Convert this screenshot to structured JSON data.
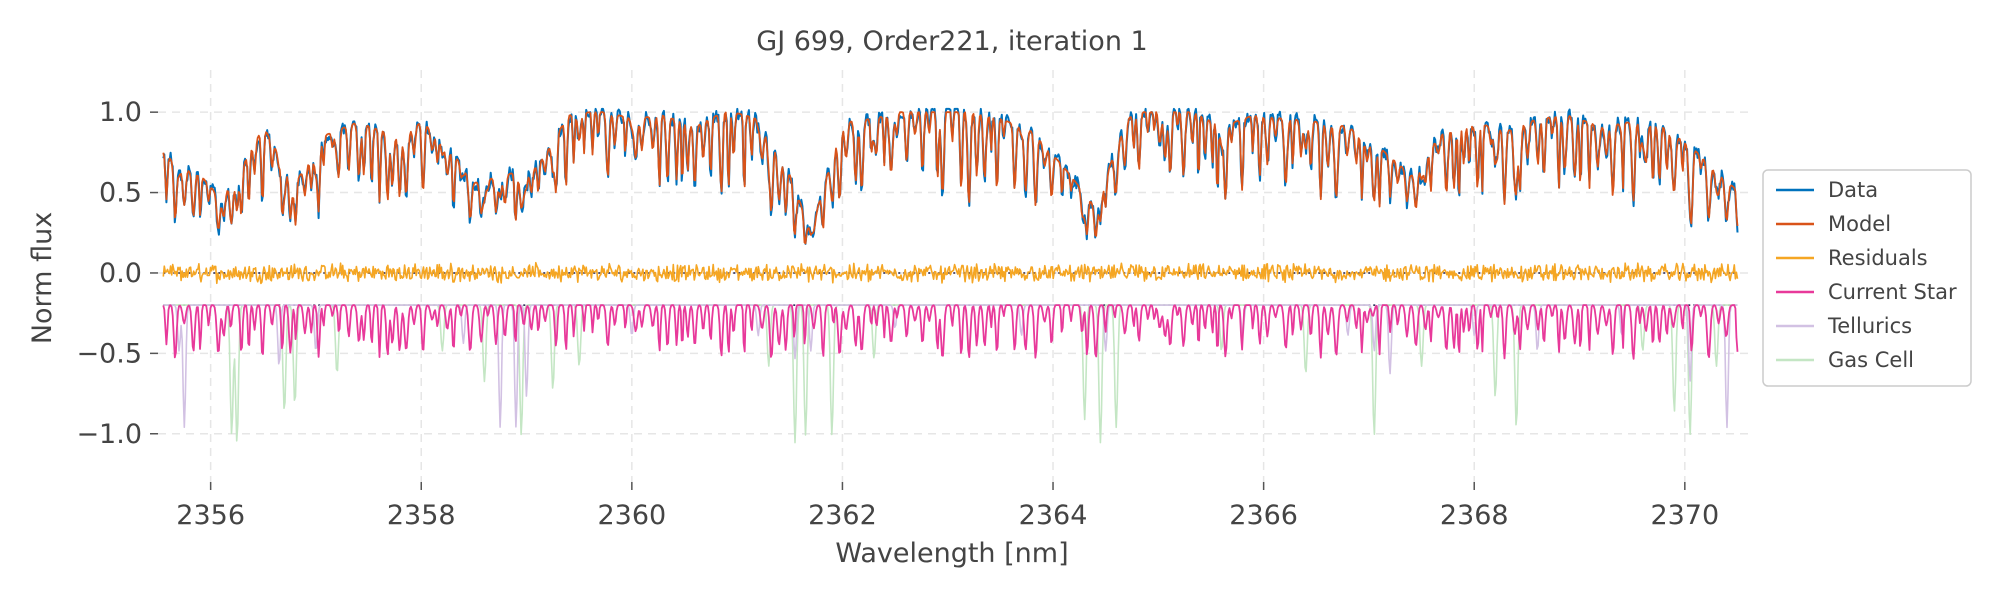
{
  "chart_data": {
    "type": "line",
    "title": "GJ 699, Order221, iteration 1",
    "xlabel": "Wavelength [nm]",
    "ylabel": "Norm flux",
    "xlim": [
      2355.5,
      2370.6
    ],
    "ylim": [
      -1.3,
      1.2
    ],
    "xticks": [
      2356,
      2358,
      2360,
      2362,
      2364,
      2366,
      2368,
      2370
    ],
    "yticks": [
      1.0,
      0.5,
      0.0,
      -0.5,
      -1.0
    ],
    "ytick_labels": [
      "1.0",
      "0.5",
      "0.0",
      "−0.5",
      "−1.0"
    ],
    "grid": true,
    "legend_position": "center-right outside",
    "reference_lines": [
      0.0,
      -0.2
    ],
    "series": [
      {
        "name": "Data",
        "color": "#0072bd",
        "role": "spectrum",
        "offset": 0.0,
        "noise": 0.04
      },
      {
        "name": "Model",
        "color": "#d95319",
        "role": "spectrum",
        "offset": 0.0,
        "noise": 0.0
      },
      {
        "name": "Residuals",
        "color": "#f5a623",
        "role": "residual",
        "offset": 0.0,
        "noise": 0.06
      },
      {
        "name": "Current Star",
        "color": "#e8399a",
        "role": "star",
        "offset": -0.2,
        "noise": 0.0
      },
      {
        "name": "Tellurics",
        "color": "#d2c1e3",
        "role": "telluric",
        "offset": -0.2,
        "noise": 0.0
      },
      {
        "name": "Gas Cell",
        "color": "#c4e6c4",
        "role": "gascell",
        "offset": -0.2,
        "noise": 0.0
      }
    ],
    "envelope": {
      "x": [
        2355.5,
        2355.7,
        2355.9,
        2356.1,
        2356.3,
        2356.5,
        2356.8,
        2357.1,
        2357.4,
        2357.8,
        2358.0,
        2358.2,
        2358.5,
        2358.8,
        2359.1,
        2359.4,
        2359.7,
        2360.0,
        2360.3,
        2360.6,
        2360.9,
        2361.2,
        2361.5,
        2361.7,
        2362.0,
        2362.3,
        2362.6,
        2362.9,
        2363.2,
        2363.5,
        2363.8,
        2364.1,
        2364.4,
        2364.7,
        2365.0,
        2365.3,
        2365.6,
        2365.9,
        2366.2,
        2366.5,
        2366.8,
        2367.1,
        2367.4,
        2367.7,
        2368.0,
        2368.3,
        2368.6,
        2368.9,
        2369.2,
        2369.5,
        2369.8,
        2370.1,
        2370.5
      ],
      "y": [
        0.72,
        0.6,
        0.55,
        0.4,
        0.6,
        0.85,
        0.5,
        0.8,
        0.88,
        0.78,
        0.88,
        0.78,
        0.5,
        0.55,
        0.6,
        0.92,
        0.95,
        0.9,
        0.92,
        0.85,
        0.95,
        0.9,
        0.55,
        0.2,
        0.88,
        0.9,
        0.95,
        0.98,
        0.95,
        0.9,
        0.82,
        0.6,
        0.35,
        0.9,
        0.98,
        0.95,
        0.85,
        0.92,
        0.9,
        0.88,
        0.85,
        0.72,
        0.55,
        0.82,
        0.88,
        0.82,
        0.9,
        0.92,
        0.85,
        0.88,
        0.85,
        0.7,
        0.45
      ]
    },
    "telluric_lines": [
      [
        2355.7,
        0.3
      ],
      [
        2355.75,
        0.8
      ],
      [
        2356.65,
        0.4
      ],
      [
        2357.0,
        0.3
      ],
      [
        2358.4,
        0.25
      ],
      [
        2358.75,
        0.8
      ],
      [
        2358.9,
        0.8
      ],
      [
        2359.0,
        0.6
      ],
      [
        2360.0,
        0.2
      ],
      [
        2361.2,
        0.2
      ],
      [
        2361.55,
        0.35
      ],
      [
        2361.7,
        0.3
      ],
      [
        2362.5,
        0.15
      ],
      [
        2363.7,
        0.2
      ],
      [
        2364.5,
        0.3
      ],
      [
        2365.8,
        0.2
      ],
      [
        2366.8,
        0.2
      ],
      [
        2367.05,
        0.3
      ],
      [
        2367.2,
        0.45
      ],
      [
        2368.0,
        0.2
      ],
      [
        2368.6,
        0.3
      ],
      [
        2369.4,
        0.2
      ],
      [
        2370.05,
        0.5
      ],
      [
        2370.4,
        0.8
      ],
      [
        2370.55,
        0.85
      ]
    ],
    "gas_cell_lines": [
      [
        2356.2,
        0.85
      ],
      [
        2356.25,
        0.9
      ],
      [
        2356.7,
        0.7
      ],
      [
        2356.8,
        0.65
      ],
      [
        2357.0,
        0.3
      ],
      [
        2357.2,
        0.45
      ],
      [
        2358.2,
        0.3
      ],
      [
        2358.6,
        0.5
      ],
      [
        2358.95,
        0.85
      ],
      [
        2359.25,
        0.55
      ],
      [
        2359.5,
        0.4
      ],
      [
        2361.3,
        0.4
      ],
      [
        2361.55,
        0.9
      ],
      [
        2361.65,
        0.85
      ],
      [
        2361.9,
        0.85
      ],
      [
        2362.3,
        0.35
      ],
      [
        2363.2,
        0.3
      ],
      [
        2364.3,
        0.75
      ],
      [
        2364.45,
        0.9
      ],
      [
        2364.6,
        0.8
      ],
      [
        2365.6,
        0.3
      ],
      [
        2366.4,
        0.45
      ],
      [
        2367.05,
        0.85
      ],
      [
        2367.5,
        0.4
      ],
      [
        2368.2,
        0.6
      ],
      [
        2368.4,
        0.8
      ],
      [
        2369.6,
        0.3
      ],
      [
        2369.9,
        0.7
      ],
      [
        2370.05,
        0.85
      ],
      [
        2370.3,
        0.4
      ]
    ]
  }
}
